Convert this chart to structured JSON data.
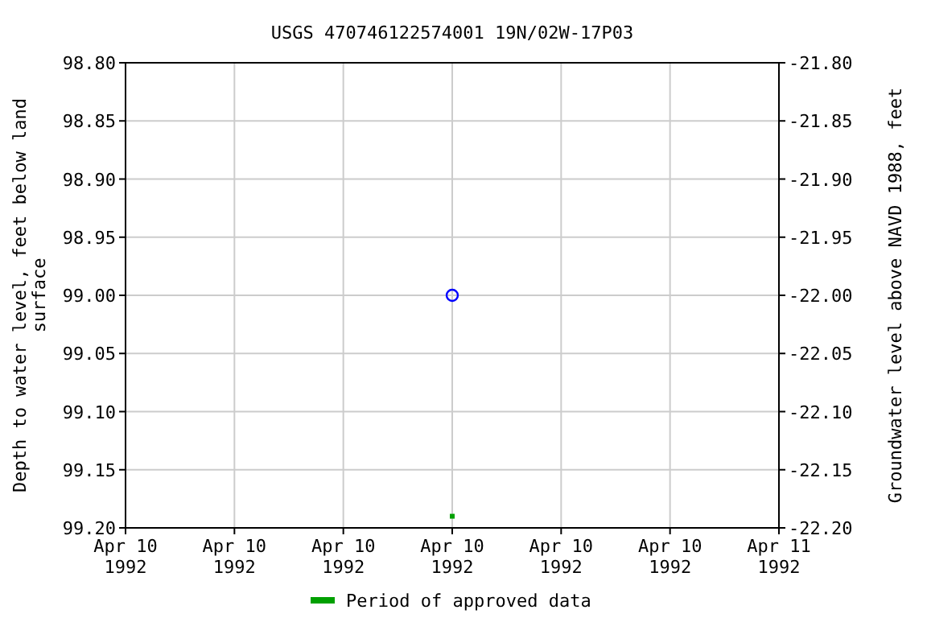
{
  "chart_data": {
    "type": "scatter",
    "title": "USGS 470746122574001 19N/02W-17P03",
    "xlabel": null,
    "ylabel": "Depth to water level, feet below land\nsurface",
    "y2label": "Groundwater level above NAVD 1988, feet",
    "xlim": [
      "1992-04-10T00:00",
      "1992-04-11T00:00"
    ],
    "xticks": [
      {
        "value": "1992-04-10T00:00",
        "label": "Apr 10\n1992"
      },
      {
        "value": "1992-04-10T04:00",
        "label": "Apr 10\n1992"
      },
      {
        "value": "1992-04-10T08:00",
        "label": "Apr 10\n1992"
      },
      {
        "value": "1992-04-10T12:00",
        "label": "Apr 10\n1992"
      },
      {
        "value": "1992-04-10T16:00",
        "label": "Apr 10\n1992"
      },
      {
        "value": "1992-04-10T20:00",
        "label": "Apr 10\n1992"
      },
      {
        "value": "1992-04-11T00:00",
        "label": "Apr 11\n1992"
      }
    ],
    "ylim": [
      99.2,
      98.8
    ],
    "yticks": [
      {
        "value": 98.8,
        "label": "98.80"
      },
      {
        "value": 98.85,
        "label": "98.85"
      },
      {
        "value": 98.9,
        "label": "98.90"
      },
      {
        "value": 98.95,
        "label": "98.95"
      },
      {
        "value": 99.0,
        "label": "99.00"
      },
      {
        "value": 99.05,
        "label": "99.05"
      },
      {
        "value": 99.1,
        "label": "99.10"
      },
      {
        "value": 99.15,
        "label": "99.15"
      },
      {
        "value": 99.2,
        "label": "99.20"
      }
    ],
    "y2lim": [
      -22.2,
      -21.8
    ],
    "y2ticks": [
      {
        "value": -21.8,
        "label": "-21.80"
      },
      {
        "value": -21.85,
        "label": "-21.85"
      },
      {
        "value": -21.9,
        "label": "-21.90"
      },
      {
        "value": -21.95,
        "label": "-21.95"
      },
      {
        "value": -22.0,
        "label": "-22.00"
      },
      {
        "value": -22.05,
        "label": "-22.05"
      },
      {
        "value": -22.1,
        "label": "-22.10"
      },
      {
        "value": -22.15,
        "label": "-22.15"
      },
      {
        "value": -22.2,
        "label": "-22.20"
      }
    ],
    "grid": true,
    "legend": "bottom",
    "marker": "circle",
    "series": [
      {
        "color": "#0000ff",
        "x": [
          "1992-04-10T12:00"
        ],
        "values": [
          99.0
        ]
      },
      {
        "name": "Period of approved data",
        "color": "#00a000",
        "x": [
          "1992-04-10T12:00"
        ],
        "values": [
          99.19
        ],
        "marker": "square"
      }
    ]
  }
}
